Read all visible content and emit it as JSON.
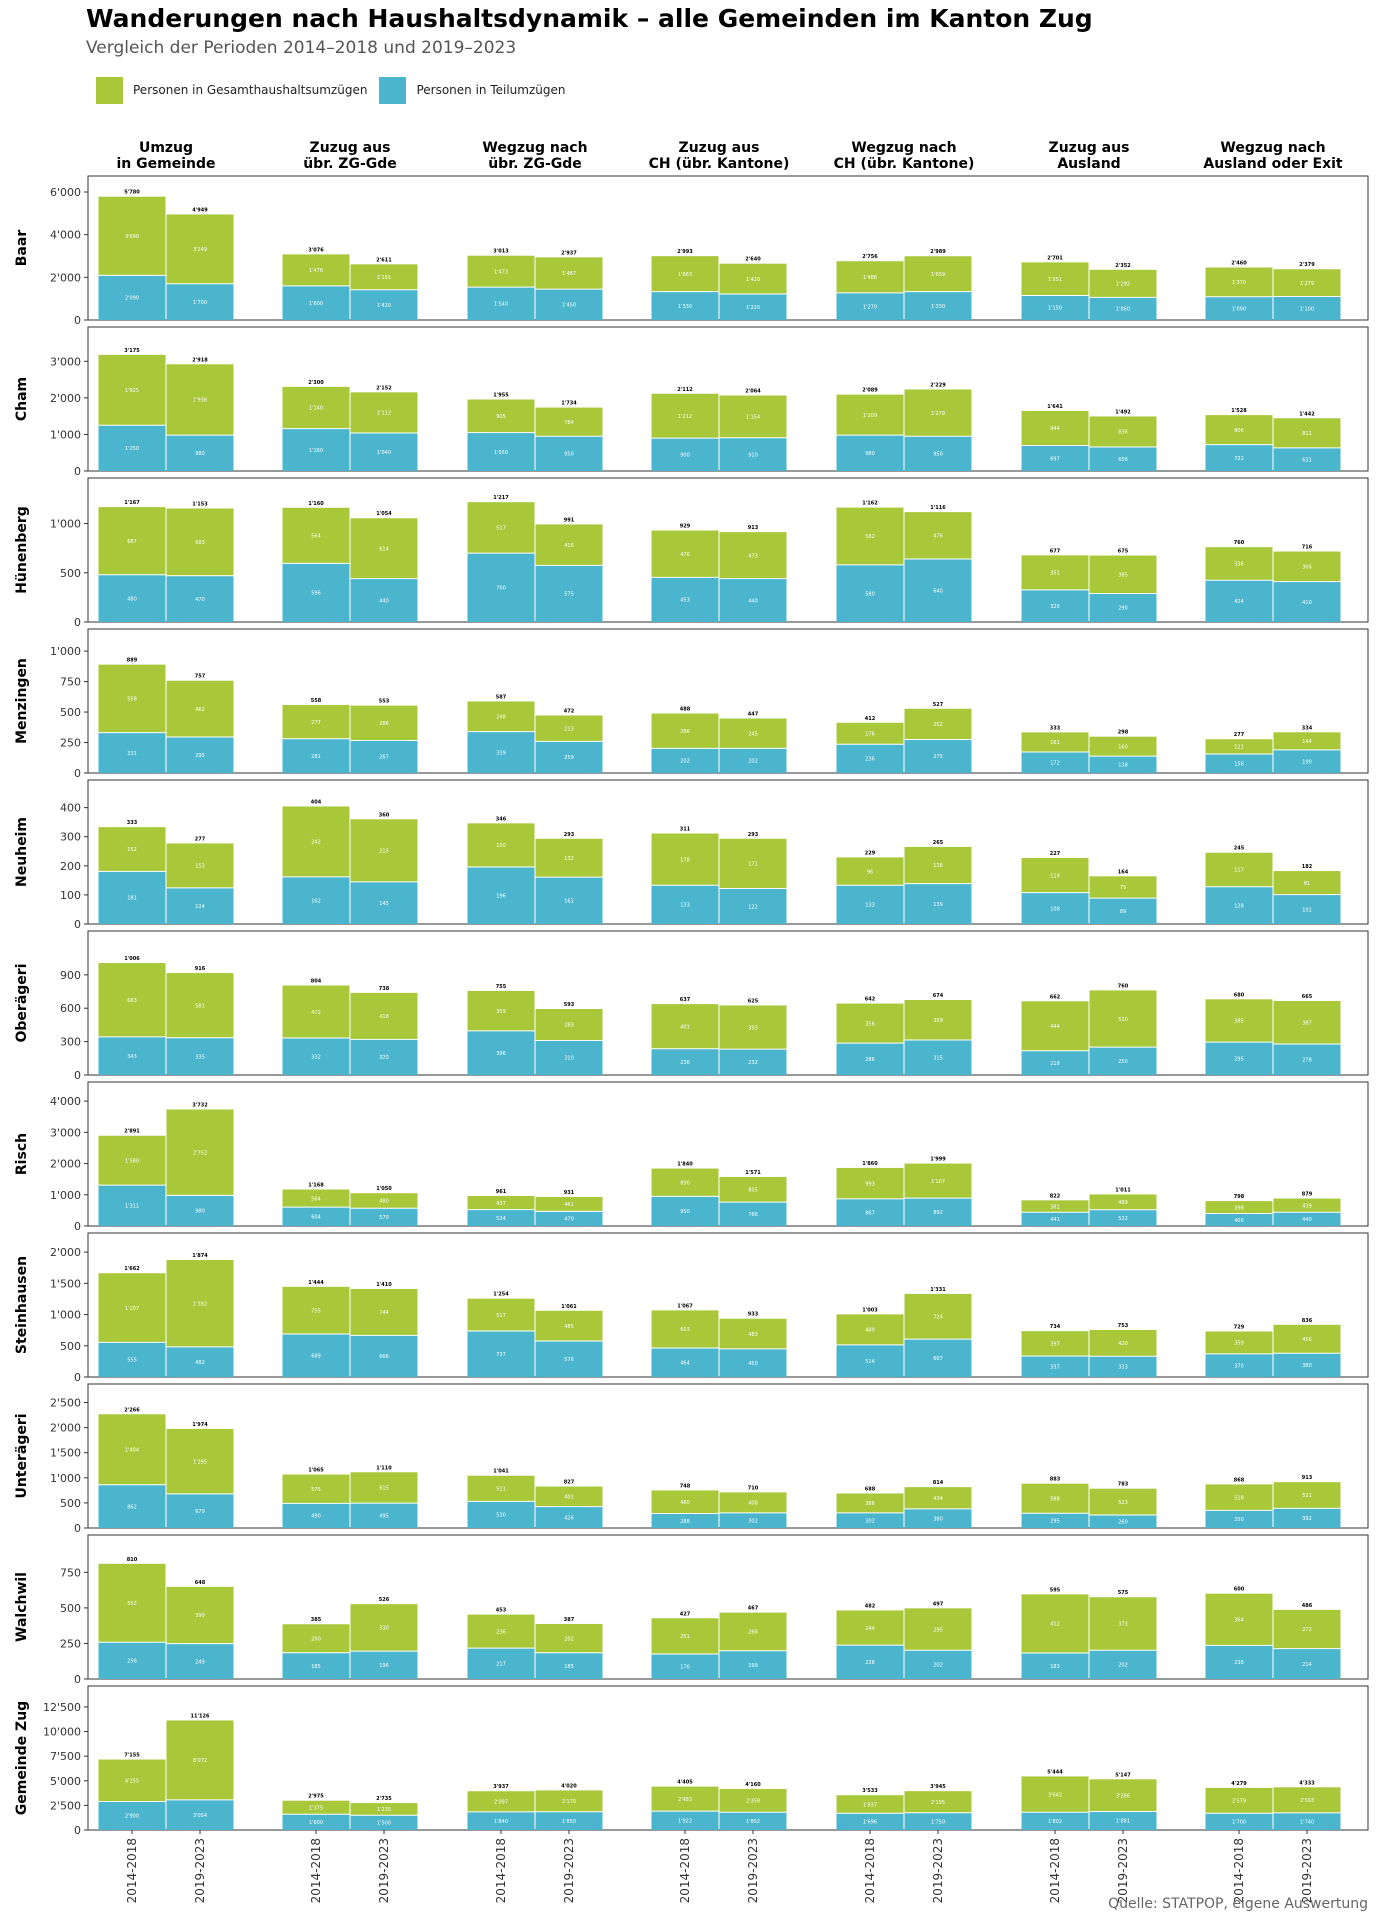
{
  "title": "Wanderungen nach Haushaltsdynamik – alle Gemeinden im Kanton Zug",
  "subtitle": "Vergleich der Perioden 2014–2018 und 2019–2023",
  "source": "Quelle: STATPOP, eigene Auswertung",
  "colors": {
    "gesamt": "#A8C83A",
    "teil": "#4BB5CE"
  },
  "legend": [
    {
      "key": "gesamt",
      "label": "Personen in Gesamthaushaltsumzügen"
    },
    {
      "key": "teil",
      "label": "Personen in Teilumzügen"
    }
  ],
  "chart_data": {
    "type": "bar",
    "stacked": true,
    "facet_columns": [
      "Umzug\nin Gemeinde",
      "Zuzug aus\nübr. ZG-Gde",
      "Wegzug nach\nübr. ZG-Gde",
      "Zuzug aus\nCH (übr. Kantone)",
      "Wegzug nach\nCH (übr. Kantone)",
      "Zuzug aus\nAusland",
      "Wegzug nach\nAusland oder Exit"
    ],
    "periods": [
      "2014-2018",
      "2019-2023"
    ],
    "series": [
      {
        "name": "Personen in Gesamthaushaltsumzügen",
        "key": "gesamt"
      },
      {
        "name": "Personen in Teilumzügen",
        "key": "teil"
      }
    ],
    "rows": [
      {
        "name": "Baar",
        "ymax": 6000,
        "ticks": [
          0,
          2000,
          4000,
          6000
        ],
        "tick_labels": [
          "0",
          "2'000",
          "4'000",
          "6'000"
        ],
        "cells": [
          [
            {
              "teil": 2090,
              "gesamt": 3690
            },
            {
              "teil": 1700,
              "gesamt": 3249
            }
          ],
          [
            {
              "teil": 1600,
              "gesamt": 1476
            },
            {
              "teil": 1420,
              "gesamt": 1191
            }
          ],
          [
            {
              "teil": 1540,
              "gesamt": 1473
            },
            {
              "teil": 1450,
              "gesamt": 1487
            }
          ],
          [
            {
              "teil": 1330,
              "gesamt": 1663
            },
            {
              "teil": 1220,
              "gesamt": 1420
            }
          ],
          [
            {
              "teil": 1270,
              "gesamt": 1486
            },
            {
              "teil": 1330,
              "gesamt": 1659
            }
          ],
          [
            {
              "teil": 1150,
              "gesamt": 1551
            },
            {
              "teil": 1060,
              "gesamt": 1292
            }
          ],
          [
            {
              "teil": 1090,
              "gesamt": 1370
            },
            {
              "teil": 1100,
              "gesamt": 1279
            }
          ]
        ]
      },
      {
        "name": "Cham",
        "ymax": 3500,
        "ticks": [
          0,
          1000,
          2000,
          3000
        ],
        "tick_labels": [
          "0",
          "1'000",
          "2'000",
          "3'000"
        ],
        "cells": [
          [
            {
              "teil": 1250,
              "gesamt": 1925
            },
            {
              "teil": 980,
              "gesamt": 1938
            }
          ],
          [
            {
              "teil": 1160,
              "gesamt": 1140
            },
            {
              "teil": 1040,
              "gesamt": 1112
            }
          ],
          [
            {
              "teil": 1050,
              "gesamt": 905
            },
            {
              "teil": 950,
              "gesamt": 784
            }
          ],
          [
            {
              "teil": 900,
              "gesamt": 1212
            },
            {
              "teil": 910,
              "gesamt": 1154
            }
          ],
          [
            {
              "teil": 980,
              "gesamt": 1109
            },
            {
              "teil": 950,
              "gesamt": 1279
            }
          ],
          [
            {
              "teil": 697,
              "gesamt": 944
            },
            {
              "teil": 656,
              "gesamt": 836
            }
          ],
          [
            {
              "teil": 722,
              "gesamt": 806
            },
            {
              "teil": 631,
              "gesamt": 811
            }
          ]
        ]
      },
      {
        "name": "Hünenberg",
        "ymax": 1300,
        "ticks": [
          0,
          500,
          1000
        ],
        "tick_labels": [
          "0",
          "500",
          "1'000"
        ],
        "cells": [
          [
            {
              "teil": 480,
              "gesamt": 687
            },
            {
              "teil": 470,
              "gesamt": 683
            }
          ],
          [
            {
              "teil": 596,
              "gesamt": 564
            },
            {
              "teil": 440,
              "gesamt": 614
            }
          ],
          [
            {
              "teil": 700,
              "gesamt": 517
            },
            {
              "teil": 575,
              "gesamt": 416
            }
          ],
          [
            {
              "teil": 453,
              "gesamt": 476
            },
            {
              "teil": 440,
              "gesamt": 473
            }
          ],
          [
            {
              "teil": 580,
              "gesamt": 582
            },
            {
              "teil": 640,
              "gesamt": 476
            }
          ],
          [
            {
              "teil": 326,
              "gesamt": 351
            },
            {
              "teil": 290,
              "gesamt": 385
            }
          ],
          [
            {
              "teil": 424,
              "gesamt": 336
            },
            {
              "teil": 410,
              "gesamt": 306
            }
          ]
        ]
      },
      {
        "name": "Menzingen",
        "ymax": 1050,
        "ticks": [
          0,
          250,
          500,
          750,
          1000
        ],
        "tick_labels": [
          "0",
          "250",
          "500",
          "750",
          "1'000"
        ],
        "cells": [
          [
            {
              "teil": 331,
              "gesamt": 558
            },
            {
              "teil": 295,
              "gesamt": 462
            }
          ],
          [
            {
              "teil": 281,
              "gesamt": 277
            },
            {
              "teil": 267,
              "gesamt": 286
            }
          ],
          [
            {
              "teil": 339,
              "gesamt": 248
            },
            {
              "teil": 259,
              "gesamt": 213
            }
          ],
          [
            {
              "teil": 202,
              "gesamt": 286
            },
            {
              "teil": 202,
              "gesamt": 245
            }
          ],
          [
            {
              "teil": 236,
              "gesamt": 176
            },
            {
              "teil": 275,
              "gesamt": 252
            }
          ],
          [
            {
              "teil": 172,
              "gesamt": 161
            },
            {
              "teil": 138,
              "gesamt": 160
            }
          ],
          [
            {
              "teil": 156,
              "gesamt": 121
            },
            {
              "teil": 190,
              "gesamt": 144
            }
          ]
        ]
      },
      {
        "name": "Neuheim",
        "ymax": 440,
        "ticks": [
          0,
          100,
          200,
          300,
          400
        ],
        "tick_labels": [
          "0",
          "100",
          "200",
          "300",
          "400"
        ],
        "cells": [
          [
            {
              "teil": 181,
              "gesamt": 152
            },
            {
              "teil": 124,
              "gesamt": 153
            }
          ],
          [
            {
              "teil": 162,
              "gesamt": 242
            },
            {
              "teil": 145,
              "gesamt": 215
            }
          ],
          [
            {
              "teil": 196,
              "gesamt": 150
            },
            {
              "teil": 161,
              "gesamt": 132
            }
          ],
          [
            {
              "teil": 133,
              "gesamt": 178
            },
            {
              "teil": 122,
              "gesamt": 171
            }
          ],
          [
            {
              "teil": 133,
              "gesamt": 96
            },
            {
              "teil": 139,
              "gesamt": 126
            }
          ],
          [
            {
              "teil": 108,
              "gesamt": 119
            },
            {
              "teil": 89,
              "gesamt": 75
            }
          ],
          [
            {
              "teil": 128,
              "gesamt": 117
            },
            {
              "teil": 101,
              "gesamt": 81
            }
          ]
        ]
      },
      {
        "name": "Oberägeri",
        "ymax": 1150,
        "ticks": [
          0,
          300,
          600,
          900
        ],
        "tick_labels": [
          "0",
          "300",
          "600",
          "900"
        ],
        "cells": [
          [
            {
              "teil": 343,
              "gesamt": 663
            },
            {
              "teil": 335,
              "gesamt": 581
            }
          ],
          [
            {
              "teil": 332,
              "gesamt": 472
            },
            {
              "teil": 320,
              "gesamt": 418
            }
          ],
          [
            {
              "teil": 396,
              "gesamt": 359
            },
            {
              "teil": 310,
              "gesamt": 283
            }
          ],
          [
            {
              "teil": 236,
              "gesamt": 401
            },
            {
              "teil": 232,
              "gesamt": 393
            }
          ],
          [
            {
              "teil": 286,
              "gesamt": 356
            },
            {
              "teil": 315,
              "gesamt": 359
            }
          ],
          [
            {
              "teil": 218,
              "gesamt": 444
            },
            {
              "teil": 250,
              "gesamt": 510
            }
          ],
          [
            {
              "teil": 295,
              "gesamt": 385
            },
            {
              "teil": 278,
              "gesamt": 387
            }
          ]
        ]
      },
      {
        "name": "Risch",
        "ymax": 4100,
        "ticks": [
          0,
          1000,
          2000,
          3000,
          4000
        ],
        "tick_labels": [
          "0",
          "1'000",
          "2'000",
          "3'000",
          "4'000"
        ],
        "cells": [
          [
            {
              "teil": 1311,
              "gesamt": 1580
            },
            {
              "teil": 980,
              "gesamt": 2752
            }
          ],
          [
            {
              "teil": 604,
              "gesamt": 564
            },
            {
              "teil": 570,
              "gesamt": 480
            }
          ],
          [
            {
              "teil": 524,
              "gesamt": 437
            },
            {
              "teil": 470,
              "gesamt": 461
            }
          ],
          [
            {
              "teil": 950,
              "gesamt": 890
            },
            {
              "teil": 766,
              "gesamt": 805
            }
          ],
          [
            {
              "teil": 867,
              "gesamt": 993
            },
            {
              "teil": 892,
              "gesamt": 1107
            }
          ],
          [
            {
              "teil": 441,
              "gesamt": 381
            },
            {
              "teil": 522,
              "gesamt": 489
            }
          ],
          [
            {
              "teil": 400,
              "gesamt": 398
            },
            {
              "teil": 440,
              "gesamt": 439
            }
          ]
        ]
      },
      {
        "name": "Steinhausen",
        "ymax": 2050,
        "ticks": [
          0,
          500,
          1000,
          1500,
          2000
        ],
        "tick_labels": [
          "0",
          "500",
          "1'000",
          "1'500",
          "2'000"
        ],
        "cells": [
          [
            {
              "teil": 555,
              "gesamt": 1107
            },
            {
              "teil": 482,
              "gesamt": 1392
            }
          ],
          [
            {
              "teil": 689,
              "gesamt": 755
            },
            {
              "teil": 666,
              "gesamt": 744
            }
          ],
          [
            {
              "teil": 737,
              "gesamt": 517
            },
            {
              "teil": 576,
              "gesamt": 485
            }
          ],
          [
            {
              "teil": 464,
              "gesamt": 603
            },
            {
              "teil": 450,
              "gesamt": 483
            }
          ],
          [
            {
              "teil": 514,
              "gesamt": 489
            },
            {
              "teil": 607,
              "gesamt": 724
            }
          ],
          [
            {
              "teil": 337,
              "gesamt": 397
            },
            {
              "teil": 333,
              "gesamt": 420
            }
          ],
          [
            {
              "teil": 370,
              "gesamt": 359
            },
            {
              "teil": 380,
              "gesamt": 456
            }
          ]
        ]
      },
      {
        "name": "Unterägeri",
        "ymax": 2550,
        "ticks": [
          0,
          500,
          1000,
          1500,
          2000,
          2500
        ],
        "tick_labels": [
          "0",
          "500",
          "1'000",
          "1'500",
          "2'000",
          "2'500"
        ],
        "cells": [
          [
            {
              "teil": 862,
              "gesamt": 1404
            },
            {
              "teil": 679,
              "gesamt": 1295
            }
          ],
          [
            {
              "teil": 490,
              "gesamt": 575
            },
            {
              "teil": 495,
              "gesamt": 615
            }
          ],
          [
            {
              "teil": 530,
              "gesamt": 511
            },
            {
              "teil": 426,
              "gesamt": 401
            }
          ],
          [
            {
              "teil": 288,
              "gesamt": 460
            },
            {
              "teil": 302,
              "gesamt": 408
            }
          ],
          [
            {
              "teil": 302,
              "gesamt": 386
            },
            {
              "teil": 380,
              "gesamt": 434
            }
          ],
          [
            {
              "teil": 295,
              "gesamt": 588
            },
            {
              "teil": 260,
              "gesamt": 523
            }
          ],
          [
            {
              "teil": 350,
              "gesamt": 518
            },
            {
              "teil": 392,
              "gesamt": 521
            }
          ]
        ]
      },
      {
        "name": "Walchwil",
        "ymax": 900,
        "ticks": [
          0,
          250,
          500,
          750
        ],
        "tick_labels": [
          "0",
          "250",
          "500",
          "750"
        ],
        "cells": [
          [
            {
              "teil": 258,
              "gesamt": 552
            },
            {
              "teil": 249,
              "gesamt": 399
            }
          ],
          [
            {
              "teil": 185,
              "gesamt": 200
            },
            {
              "teil": 196,
              "gesamt": 330
            }
          ],
          [
            {
              "teil": 217,
              "gesamt": 236
            },
            {
              "teil": 185,
              "gesamt": 202
            }
          ],
          [
            {
              "teil": 176,
              "gesamt": 251
            },
            {
              "teil": 199,
              "gesamt": 268
            }
          ],
          [
            {
              "teil": 238,
              "gesamt": 244
            },
            {
              "teil": 202,
              "gesamt": 295
            }
          ],
          [
            {
              "teil": 183,
              "gesamt": 412
            },
            {
              "teil": 202,
              "gesamt": 373
            }
          ],
          [
            {
              "teil": 236,
              "gesamt": 364
            },
            {
              "teil": 214,
              "gesamt": 272
            }
          ]
        ]
      },
      {
        "name": "Gemeinde Zug",
        "ymax": 13000,
        "ticks": [
          0,
          2500,
          5000,
          7500,
          10000,
          12500
        ],
        "tick_labels": [
          "0",
          "2'500",
          "5'000",
          "7'500",
          "10'000",
          "12'500"
        ],
        "cells": [
          [
            {
              "teil": 2900,
              "gesamt": 4255
            },
            {
              "teil": 3054,
              "gesamt": 8072
            }
          ],
          [
            {
              "teil": 1600,
              "gesamt": 1375
            },
            {
              "teil": 1500,
              "gesamt": 1235
            }
          ],
          [
            {
              "teil": 1840,
              "gesamt": 2097
            },
            {
              "teil": 1850,
              "gesamt": 2170
            }
          ],
          [
            {
              "teil": 1922,
              "gesamt": 2483
            },
            {
              "teil": 1802,
              "gesamt": 2358
            }
          ],
          [
            {
              "teil": 1696,
              "gesamt": 1837
            },
            {
              "teil": 1750,
              "gesamt": 2195
            }
          ],
          [
            {
              "teil": 1802,
              "gesamt": 3642
            },
            {
              "teil": 1881,
              "gesamt": 3266
            }
          ],
          [
            {
              "teil": 1700,
              "gesamt": 2579
            },
            {
              "teil": 1740,
              "gesamt": 2593
            }
          ]
        ]
      }
    ],
    "ylabel": "",
    "xlabel": ""
  }
}
